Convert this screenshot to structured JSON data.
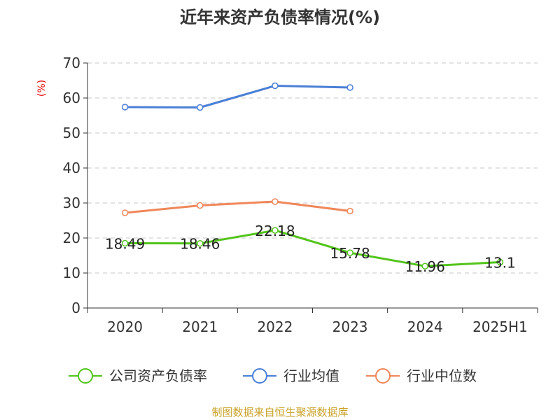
{
  "chart_data": {
    "type": "line",
    "title": "近年来资产负债率情况(%)",
    "ylabel": "(%)",
    "xlabel": "",
    "ylim": [
      0,
      70
    ],
    "yticks": [
      0,
      10,
      20,
      30,
      40,
      50,
      60,
      70
    ],
    "categories": [
      "2020",
      "2021",
      "2022",
      "2023",
      "2024",
      "2025H1"
    ],
    "grid": "horizontal-dashed",
    "legend_position": "bottom",
    "series": [
      {
        "name": "公司资产负债率",
        "color": "#52c41a",
        "values": [
          18.49,
          18.46,
          22.18,
          15.78,
          11.96,
          13.1
        ],
        "labels": [
          "18.49",
          "18.46",
          "22.18",
          "15.78",
          "11.96",
          "13.1"
        ]
      },
      {
        "name": "行业均值",
        "color": "#4a7fd6",
        "values": [
          57.4,
          57.3,
          63.5,
          63.0,
          null,
          null
        ]
      },
      {
        "name": "行业中位数",
        "color": "#f0875a",
        "values": [
          27.2,
          29.3,
          30.4,
          27.7,
          null,
          null
        ]
      }
    ],
    "source": "制图数据来自恒生聚源数据库"
  }
}
